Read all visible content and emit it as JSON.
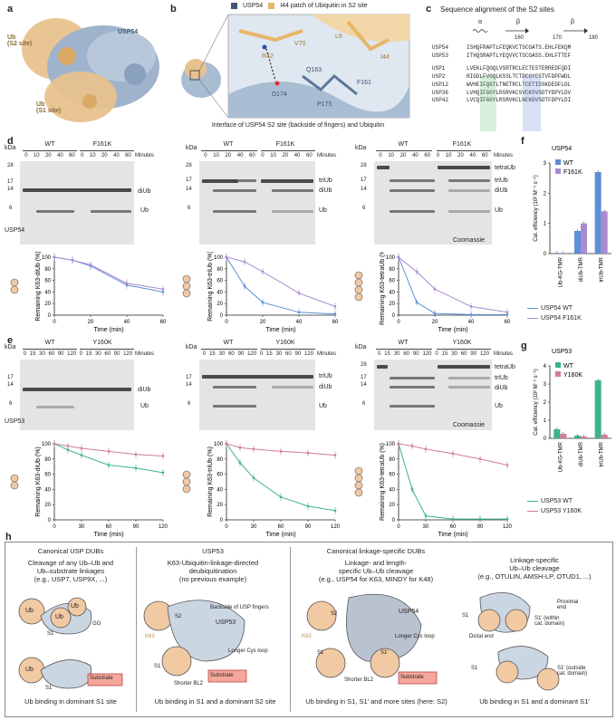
{
  "panels": {
    "a": "a",
    "b": "b",
    "c": "c",
    "d": "d",
    "e": "e",
    "f": "f",
    "g": "g",
    "h": "h"
  },
  "panel_a": {
    "ub_s2": "Ub\n(S2 site)",
    "usp54": "USP54",
    "ub_s1": "Ub\n(S1 site)"
  },
  "panel_b": {
    "legend": [
      {
        "label": "USP54",
        "color": "#3e5575"
      },
      {
        "label": "I44 patch of Ubiquitin in S2 site",
        "color": "#e8b56b"
      }
    ],
    "residues": [
      "R42",
      "V70",
      "L8",
      "I44",
      "Q163",
      "F161",
      "D174",
      "P175"
    ],
    "caption": "Interface of USP54 S2 site (backside of fingers) and Ubiquitin"
  },
  "panel_c": {
    "title": "Sequence alignment of the S2 sites",
    "ss": [
      "α",
      "β",
      "β"
    ],
    "positions": [
      "160",
      "170",
      "180"
    ],
    "rows": [
      {
        "name": "USP54",
        "seq": "ISHQFRAPTLFEQKVCTSCGATS.EHLFEKQM"
      },
      {
        "name": "USP53",
        "seq": "ITHQSRAPTLYEQVVCTSCGASS.EHLFTTEF"
      },
      {
        "name": "USP1",
        "seq": "LVEKLFQGQLVSRTRCLECTESTERREDFQDI"
      },
      {
        "name": "USP2",
        "seq": "RIGDLFVGQLKSSLTCTDCGYCSTVFDPFWDL"
      },
      {
        "name": "USP12",
        "seq": "WVHEIFQGTLTNETRCLTCETISSKDEDFLDL"
      },
      {
        "name": "USP36",
        "seq": "LVHQIFGGYLRSRVKCSVCKSVSDTYDPYLDV"
      },
      {
        "name": "USP42",
        "seq": "LVCQIFGGYLRSRVKCLNCKGVSDTFDPYLDI"
      }
    ]
  },
  "gel_labels": {
    "kda": "kDa",
    "minutes": "Minutes",
    "wt": "WT",
    "f161k": "F161K",
    "y160k": "Y160K",
    "diub": "diUb",
    "triub": "triUb",
    "tetraub": "tetraUb",
    "ub": "Ub",
    "coomassie": "Coomassie",
    "usp54": "USP54",
    "usp53": "USP53"
  },
  "markers": {
    "m28": "28",
    "m17": "17",
    "m14": "14",
    "m6": "6"
  },
  "time_d": [
    "0",
    "10",
    "20",
    "40",
    "60"
  ],
  "time_e": [
    "0",
    "15",
    "30",
    "60",
    "90",
    "120"
  ],
  "legend_d": {
    "wt": "USP54 WT",
    "mut": "USP54 F161K",
    "wt_color": "#5b8fd6",
    "mut_color": "#a98ad0"
  },
  "legend_e": {
    "wt": "USP53 WT",
    "mut": "USP53 Y160K",
    "wt_color": "#3cb38b",
    "mut_color": "#d17aa2"
  },
  "axis": {
    "time": "Time (min)",
    "diub": "Remaining K63-diUb (%)",
    "triub": "Remaining K63-triUb (%)",
    "tetraub": "Remaining K63-tetraUb (%)",
    "cat": "Cat. efficiency (10² M⁻¹ s⁻¹)"
  },
  "chart_data": [
    {
      "type": "line",
      "id": "d-diUb",
      "x": [
        0,
        10,
        20,
        40,
        60
      ],
      "series": [
        {
          "name": "USP54 WT",
          "values": [
            100,
            95,
            85,
            52,
            40
          ]
        },
        {
          "name": "USP54 F161K",
          "values": [
            100,
            95,
            87,
            55,
            45
          ]
        }
      ],
      "ylim": [
        0,
        100
      ],
      "xlim": [
        0,
        60
      ],
      "xticks": [
        "0",
        "20",
        "40",
        "60"
      ],
      "yticks": [
        "0",
        "20",
        "40",
        "60",
        "80",
        "100"
      ]
    },
    {
      "type": "line",
      "id": "d-triUb",
      "x": [
        0,
        10,
        20,
        40,
        60
      ],
      "series": [
        {
          "name": "USP54 WT",
          "values": [
            100,
            50,
            22,
            5,
            2
          ]
        },
        {
          "name": "USP54 F161K",
          "values": [
            100,
            92,
            75,
            38,
            15
          ]
        }
      ],
      "ylim": [
        0,
        100
      ],
      "xlim": [
        0,
        60
      ],
      "xticks": [
        "0",
        "20",
        "40",
        "60"
      ],
      "yticks": [
        "0",
        "20",
        "40",
        "60",
        "80",
        "100"
      ]
    },
    {
      "type": "line",
      "id": "d-tetraUb",
      "x": [
        0,
        10,
        20,
        40,
        60
      ],
      "series": [
        {
          "name": "USP54 WT",
          "values": [
            100,
            22,
            3,
            1,
            1
          ]
        },
        {
          "name": "USP54 F161K",
          "values": [
            100,
            75,
            45,
            15,
            5
          ]
        }
      ],
      "ylim": [
        0,
        100
      ],
      "xlim": [
        0,
        60
      ],
      "xticks": [
        "0",
        "20",
        "40",
        "60"
      ],
      "yticks": [
        "0",
        "20",
        "40",
        "60",
        "80",
        "100"
      ]
    },
    {
      "type": "line",
      "id": "e-diUb",
      "x": [
        0,
        15,
        30,
        60,
        90,
        120
      ],
      "series": [
        {
          "name": "USP53 WT",
          "values": [
            100,
            92,
            85,
            72,
            68,
            62
          ]
        },
        {
          "name": "USP53 Y160K",
          "values": [
            100,
            97,
            94,
            90,
            86,
            84
          ]
        }
      ],
      "ylim": [
        0,
        100
      ],
      "xlim": [
        0,
        120
      ],
      "xticks": [
        "0",
        "30",
        "60",
        "90",
        "120"
      ],
      "yticks": [
        "0",
        "20",
        "40",
        "60",
        "80",
        "100"
      ]
    },
    {
      "type": "line",
      "id": "e-triUb",
      "x": [
        0,
        15,
        30,
        60,
        90,
        120
      ],
      "series": [
        {
          "name": "USP53 WT",
          "values": [
            100,
            75,
            55,
            30,
            18,
            12
          ]
        },
        {
          "name": "USP53 Y160K",
          "values": [
            100,
            95,
            93,
            90,
            88,
            85
          ]
        }
      ],
      "ylim": [
        0,
        100
      ],
      "xlim": [
        0,
        120
      ],
      "xticks": [
        "0",
        "30",
        "60",
        "90",
        "120"
      ],
      "yticks": [
        "0",
        "20",
        "40",
        "60",
        "80",
        "100"
      ]
    },
    {
      "type": "line",
      "id": "e-tetraUb",
      "x": [
        0,
        15,
        30,
        60,
        90,
        120
      ],
      "series": [
        {
          "name": "USP53 WT",
          "values": [
            100,
            40,
            5,
            1,
            1,
            1
          ]
        },
        {
          "name": "USP53 Y160K",
          "values": [
            100,
            97,
            93,
            87,
            80,
            72
          ]
        }
      ],
      "ylim": [
        0,
        100
      ],
      "xlim": [
        0,
        120
      ],
      "xticks": [
        "0",
        "30",
        "60",
        "90",
        "120"
      ],
      "yticks": [
        "0",
        "20",
        "40",
        "60",
        "80",
        "100"
      ]
    },
    {
      "type": "bar",
      "id": "f",
      "title": "USP54",
      "categories": [
        "Ub-KG-TMR",
        "diUb-TMR",
        "triUb-TMR"
      ],
      "series": [
        {
          "name": "WT",
          "values": [
            0.02,
            0.75,
            2.7
          ]
        },
        {
          "name": "F161K",
          "values": [
            0.02,
            1.0,
            1.4
          ]
        }
      ],
      "ylim": [
        0,
        3
      ],
      "yticks": [
        "0",
        "1",
        "2",
        "3"
      ]
    },
    {
      "type": "bar",
      "id": "g",
      "title": "USP53",
      "categories": [
        "Ub-KG-TMR",
        "diUb-TMR",
        "triUb-TMR"
      ],
      "series": [
        {
          "name": "WT",
          "values": [
            0.5,
            0.15,
            3.2
          ]
        },
        {
          "name": "Y160K",
          "values": [
            0.25,
            0.1,
            0.2
          ]
        }
      ],
      "ylim": [
        0,
        4
      ],
      "yticks": [
        "0",
        "1",
        "2",
        "3",
        "4"
      ]
    }
  ],
  "panel_h": {
    "cols": [
      {
        "title": "Canonical USP DUBs",
        "sub": "Cleavage of any Ub–Ub and\nUb–substrate linkages\n(e.g., USP7, USP9X, ...)",
        "foot": "Ub binding in dominant S1 site"
      },
      {
        "title": "USP53",
        "sub": "K63-Ubiquitin-linkage-directed\ndeubiquitination\n(no previous example)",
        "foot": "Ub binding in S1 and a dominant S2 site"
      },
      {
        "title": "Canonical linkage-specific DUBs",
        "sub": "Linkage- and length-\nspecific Ub–Ub cleavage\n(e.g., USP54 for K63, MINDY for K48)",
        "foot": "Ub binding in S1, S1′ and more sites (here: S2)"
      },
      {
        "title": "",
        "sub": "Linkage-specific\nUb–Ub cleavage\n(e.g., OTULIN, AMSH-LP, OTUD1, ...)",
        "foot": "Ub binding in S1 and a dominant S1′"
      }
    ],
    "labels": {
      "ub": "Ub",
      "s1": "S1",
      "s2": "S2",
      "s1p": "S1′",
      "gg": "GG",
      "substrate": "Substrate",
      "k63": "K63",
      "backside": "Backside of USP fingers",
      "usp53": "USP53",
      "usp54": "USP54",
      "cysloop": "Longer Cys loop",
      "bl2": "Shorter BL2",
      "proximal": "Proximal\nend",
      "distal": "Distal end",
      "within": "S1′ (within\ncat. domain)",
      "outside": "S1′ (outside\ncat. domain)"
    }
  }
}
